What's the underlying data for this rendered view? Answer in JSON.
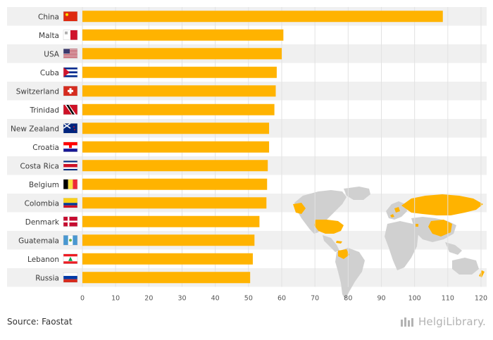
{
  "chart_data": {
    "type": "bar",
    "orientation": "horizontal",
    "categories": [
      "China",
      "Malta",
      "USA",
      "Cuba",
      "Switzerland",
      "Trinidad",
      "New Zealand",
      "Croatia",
      "Costa Rica",
      "Belgium",
      "Colombia",
      "Denmark",
      "Guatemala",
      "Lebanon",
      "Russia"
    ],
    "values": [
      108.5,
      60.5,
      60.0,
      58.5,
      58.2,
      57.8,
      56.2,
      56.2,
      55.8,
      55.6,
      55.4,
      53.3,
      51.8,
      51.3,
      50.5
    ],
    "xlim": [
      0,
      120
    ],
    "xticks": [
      0,
      10,
      20,
      30,
      40,
      50,
      60,
      70,
      80,
      90,
      100,
      110,
      120
    ],
    "bar_color": "#FFB300",
    "row_band_color": "#F0F0F0",
    "grid": true
  },
  "footer": {
    "source": "Source: Faostat",
    "brand": "HelgiLibrary."
  }
}
